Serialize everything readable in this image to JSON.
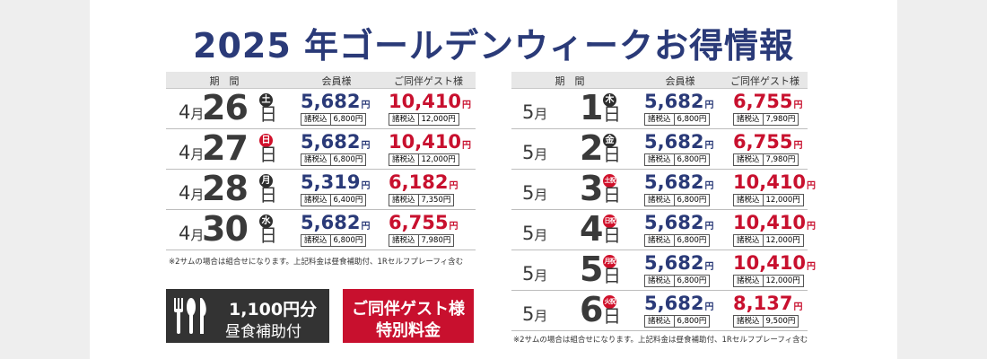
{
  "title": "2025 年ゴールデンウィークお得情報",
  "headers": {
    "period": "期　間",
    "member": "会員様",
    "guest": "ご同伴ゲスト様"
  },
  "tax_label": "諸税込",
  "month_suffix": "月",
  "day_suffix": "日",
  "yen": "円",
  "left_rows": [
    {
      "month": "4",
      "day": "26",
      "weekday": "土",
      "holiday": false,
      "member_price": "5,682",
      "member_total": "6,800円",
      "guest_price": "10,410",
      "guest_total": "12,000円"
    },
    {
      "month": "4",
      "day": "27",
      "weekday": "日",
      "holiday": true,
      "member_price": "5,682",
      "member_total": "6,800円",
      "guest_price": "10,410",
      "guest_total": "12,000円"
    },
    {
      "month": "4",
      "day": "28",
      "weekday": "月",
      "holiday": false,
      "member_price": "5,319",
      "member_total": "6,400円",
      "guest_price": "6,182",
      "guest_total": "7,350円"
    },
    {
      "month": "4",
      "day": "30",
      "weekday": "水",
      "holiday": false,
      "member_price": "5,682",
      "member_total": "6,800円",
      "guest_price": "6,755",
      "guest_total": "7,980円"
    }
  ],
  "right_rows": [
    {
      "month": "5",
      "day": "1",
      "weekday": "木",
      "holiday": false,
      "member_price": "5,682",
      "member_total": "6,800円",
      "guest_price": "6,755",
      "guest_total": "7,980円"
    },
    {
      "month": "5",
      "day": "2",
      "weekday": "金",
      "holiday": false,
      "member_price": "5,682",
      "member_total": "6,800円",
      "guest_price": "6,755",
      "guest_total": "7,980円"
    },
    {
      "month": "5",
      "day": "3",
      "weekday": "土祝",
      "holiday": true,
      "member_price": "5,682",
      "member_total": "6,800円",
      "guest_price": "10,410",
      "guest_total": "12,000円"
    },
    {
      "month": "5",
      "day": "4",
      "weekday": "日祝",
      "holiday": true,
      "member_price": "5,682",
      "member_total": "6,800円",
      "guest_price": "10,410",
      "guest_total": "12,000円"
    },
    {
      "month": "5",
      "day": "5",
      "weekday": "月祝",
      "holiday": true,
      "member_price": "5,682",
      "member_total": "6,800円",
      "guest_price": "10,410",
      "guest_total": "12,000円"
    },
    {
      "month": "5",
      "day": "6",
      "weekday": "火祝",
      "holiday": true,
      "member_price": "5,682",
      "member_total": "6,800円",
      "guest_price": "8,137",
      "guest_total": "9,500円"
    }
  ],
  "note": "※2サムの場合は組合せになります。上記料金は昼食補助付、1Rセルフプレーフィ含む",
  "lunch_box": {
    "line1": "1,100円分",
    "line2": "昼食補助付"
  },
  "guest_box": {
    "line1": "ご同伴ゲスト様",
    "line2": "特別料金"
  },
  "colors": {
    "navy": "#2a3a78",
    "red": "#c8102e",
    "dark": "#333333"
  }
}
